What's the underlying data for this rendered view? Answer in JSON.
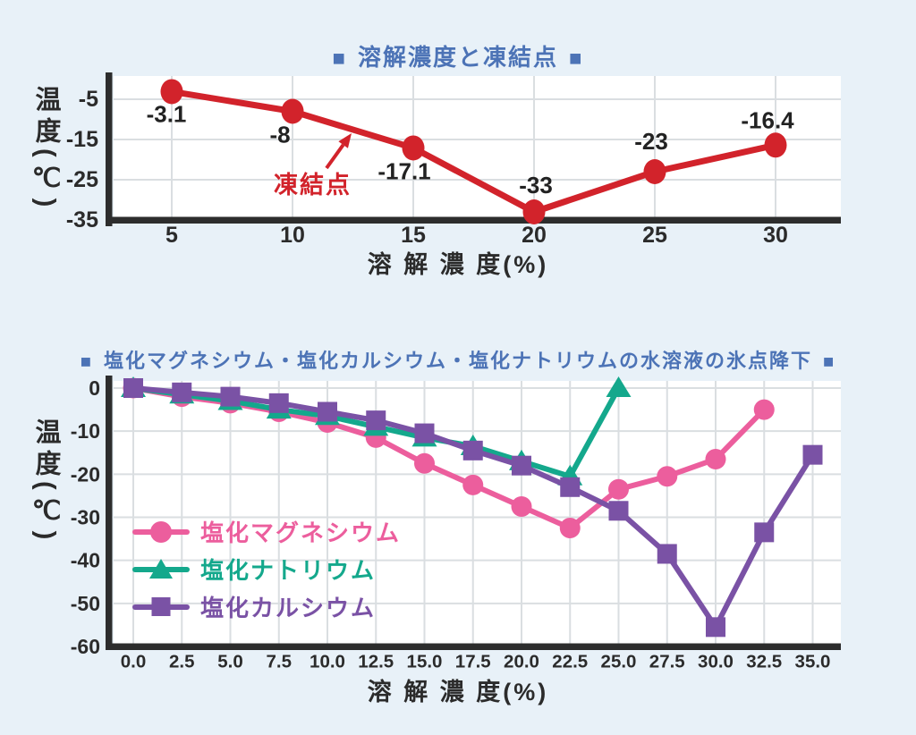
{
  "page": {
    "background": "#e8f1f8",
    "title_color": "#4c73b6",
    "axis_color": "#2d2d2d",
    "grid_color": "#dadee1",
    "tick_text_color": "#2b2b2b"
  },
  "chart_data": [
    {
      "id": "dissolution-freezing-point",
      "type": "line",
      "title": "溶解濃度と凍結点",
      "title_marker_left": "■",
      "title_marker_right": "■",
      "xlabel": "溶 解 濃 度(%)",
      "ylabel": "温度(℃)",
      "grid": true,
      "legend_position": "none",
      "xlim": [
        2.5,
        32.5
      ],
      "ylim": [
        -35,
        0
      ],
      "xticks": [
        "5",
        "10",
        "15",
        "20",
        "25",
        "30"
      ],
      "xtick_values": [
        5,
        10,
        15,
        20,
        25,
        30
      ],
      "yticks": [
        "-5",
        "-15",
        "-25",
        "-35"
      ],
      "ytick_values": [
        -5,
        -15,
        -25,
        -35
      ],
      "series": [
        {
          "name": "凍結点",
          "color": "#d2232b",
          "marker": "circle",
          "x": [
            5,
            10,
            15,
            20,
            25,
            30
          ],
          "values": [
            -3.1,
            -8,
            -17.1,
            -33,
            -23,
            -16.4
          ],
          "point_labels": [
            "-3.1",
            "-8",
            "-17.1",
            "-33",
            "-23",
            "-16.4"
          ]
        }
      ],
      "annotation": {
        "text": "凍結点",
        "color": "#d2232b"
      }
    },
    {
      "id": "chloride-freezing-point-depression",
      "type": "line",
      "title": "塩化マグネシウム・塩化カルシウム・塩化ナトリウムの水溶液の氷点降下",
      "title_marker_left": "■",
      "title_marker_right": "■",
      "xlabel": "溶 解 濃 度(%)",
      "ylabel": "温度(℃)",
      "grid": true,
      "legend_position": "inside-left",
      "xlim": [
        0,
        35
      ],
      "ylim": [
        -60,
        0
      ],
      "xticks": [
        "0.0",
        "2.5",
        "5.0",
        "7.5",
        "10.0",
        "12.5",
        "15.0",
        "17.5",
        "20.0",
        "22.5",
        "25.0",
        "27.5",
        "30.0",
        "32.5",
        "35.0"
      ],
      "xtick_values": [
        0,
        2.5,
        5,
        7.5,
        10,
        12.5,
        15,
        17.5,
        20,
        22.5,
        25,
        27.5,
        30,
        32.5,
        35
      ],
      "yticks": [
        "0",
        "-10",
        "-20",
        "-30",
        "-40",
        "-50",
        "-60"
      ],
      "ytick_values": [
        0,
        -10,
        -20,
        -30,
        -40,
        -50,
        -60
      ],
      "series": [
        {
          "name": "塩化マグネシウム",
          "color": "#ec5e9d",
          "marker": "circle",
          "x": [
            0,
            2.5,
            5,
            7.5,
            10,
            12.5,
            15,
            17.5,
            20,
            22.5,
            25,
            27.5,
            30,
            32.5
          ],
          "values": [
            0,
            -2,
            -3.5,
            -5.5,
            -8,
            -11.5,
            -17.5,
            -22.5,
            -27.5,
            -32.5,
            -23.5,
            -20.5,
            -16.5,
            -5
          ]
        },
        {
          "name": "塩化ナトリウム",
          "color": "#14a88c",
          "marker": "triangle",
          "x": [
            0,
            2.5,
            5,
            7.5,
            10,
            12.5,
            15,
            17.5,
            20,
            22.5,
            25
          ],
          "values": [
            0,
            -1.5,
            -3,
            -5,
            -6.5,
            -9,
            -11.5,
            -13.5,
            -17,
            -20.5,
            0
          ]
        },
        {
          "name": "塩化カルシウム",
          "color": "#7a52a5",
          "marker": "square",
          "x": [
            0,
            2.5,
            5,
            7.5,
            10,
            12.5,
            15,
            17.5,
            20,
            22.5,
            25,
            27.5,
            30,
            32.5,
            35
          ],
          "values": [
            0,
            -1,
            -2,
            -3.5,
            -5.5,
            -7.5,
            -10.5,
            -14.5,
            -18,
            -23,
            -28.5,
            -38.5,
            -55.5,
            -33.5,
            -15.5
          ]
        }
      ]
    }
  ]
}
